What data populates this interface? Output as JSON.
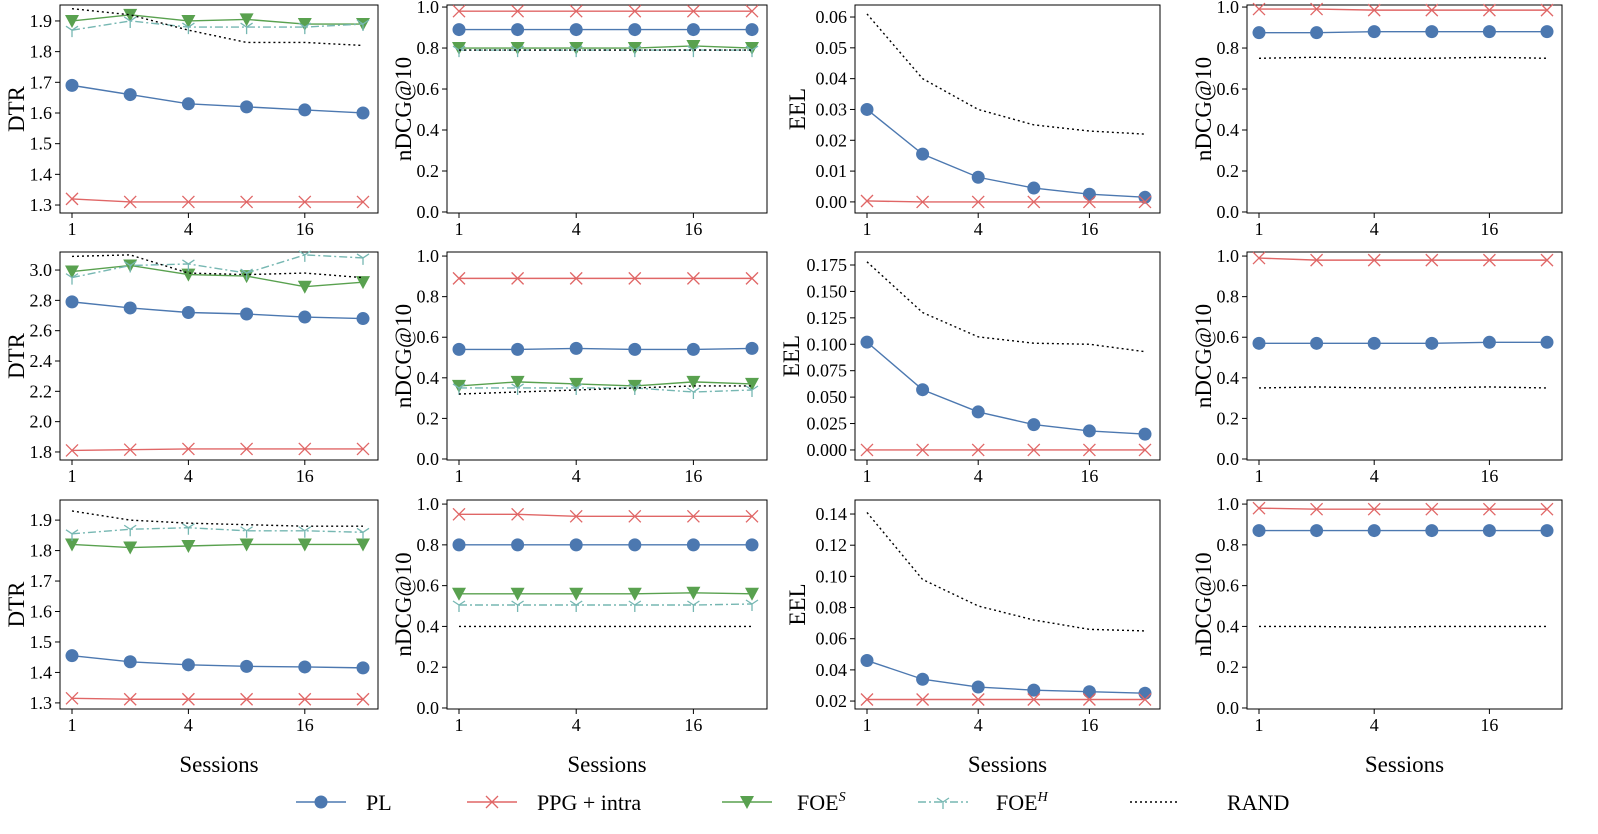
{
  "legend": [
    {
      "key": "PL",
      "label": "PL",
      "sup": "",
      "color": "#4c78b0",
      "marker": "circle",
      "dash": "solid"
    },
    {
      "key": "PPG",
      "label": "PPG + intra",
      "sup": "",
      "color": "#e06666",
      "marker": "x",
      "dash": "solid"
    },
    {
      "key": "FOES",
      "label": "FOE",
      "sup": "S",
      "color": "#59a14f",
      "marker": "triangle-down",
      "dash": "solid"
    },
    {
      "key": "FOEH",
      "label": "FOE",
      "sup": "H",
      "color": "#76b7b2",
      "marker": "tri-down",
      "dash": "dashdot"
    },
    {
      "key": "RAND",
      "label": "RAND",
      "sup": "",
      "color": "#000000",
      "marker": "none",
      "dash": "dotted"
    }
  ],
  "chart_data": [
    {
      "type": "line",
      "ylabel": "DTR",
      "xlabel": "",
      "x": [
        1,
        2,
        4,
        8,
        16,
        32
      ],
      "xticks": [
        1,
        4,
        16
      ],
      "xscale": "log2",
      "ylim": [
        1.274,
        1.952
      ],
      "yticks": [
        1.3,
        1.4,
        1.5,
        1.6,
        1.7,
        1.8,
        1.9
      ],
      "series": [
        {
          "name": "PL",
          "values": [
            1.69,
            1.66,
            1.63,
            1.62,
            1.61,
            1.6
          ]
        },
        {
          "name": "PPG",
          "values": [
            1.32,
            1.31,
            1.31,
            1.31,
            1.31,
            1.31
          ]
        },
        {
          "name": "FOES",
          "values": [
            1.9,
            1.92,
            1.9,
            1.905,
            1.89,
            1.89
          ]
        },
        {
          "name": "FOEH",
          "values": [
            1.87,
            1.9,
            1.88,
            1.88,
            1.88,
            1.89
          ]
        },
        {
          "name": "RAND",
          "values": [
            1.94,
            1.92,
            1.87,
            1.83,
            1.83,
            1.82
          ]
        }
      ]
    },
    {
      "type": "line",
      "ylabel": "nDCG@10",
      "xlabel": "",
      "x": [
        1,
        2,
        4,
        8,
        16,
        32
      ],
      "xticks": [
        1,
        4,
        16
      ],
      "xscale": "log2",
      "ylim": [
        -0.005,
        1.01
      ],
      "yticks": [
        0.0,
        0.2,
        0.4,
        0.6,
        0.8,
        1.0
      ],
      "series": [
        {
          "name": "PL",
          "values": [
            0.89,
            0.89,
            0.89,
            0.89,
            0.89,
            0.89
          ]
        },
        {
          "name": "PPG",
          "values": [
            0.98,
            0.98,
            0.98,
            0.98,
            0.98,
            0.98
          ]
        },
        {
          "name": "FOES",
          "values": [
            0.8,
            0.8,
            0.8,
            0.8,
            0.81,
            0.8
          ]
        },
        {
          "name": "FOEH",
          "values": [
            0.79,
            0.79,
            0.79,
            0.79,
            0.79,
            0.79
          ]
        },
        {
          "name": "RAND",
          "values": [
            0.79,
            0.79,
            0.79,
            0.79,
            0.79,
            0.79
          ]
        }
      ]
    },
    {
      "type": "line",
      "ylabel": "EEL",
      "xlabel": "",
      "x": [
        1,
        2,
        4,
        8,
        16,
        32
      ],
      "xticks": [
        1,
        4,
        16
      ],
      "xscale": "log2",
      "ylim": [
        -0.0036,
        0.0639
      ],
      "yticks": [
        0.0,
        0.01,
        0.02,
        0.03,
        0.04,
        0.05,
        0.06
      ],
      "ydecimals": 2,
      "series": [
        {
          "name": "PL",
          "values": [
            0.03,
            0.0155,
            0.008,
            0.0045,
            0.0025,
            0.0015
          ]
        },
        {
          "name": "PPG",
          "values": [
            0.0003,
            0,
            0,
            0,
            0,
            0
          ]
        },
        {
          "name": "RAND",
          "values": [
            0.061,
            0.04,
            0.03,
            0.025,
            0.023,
            0.022
          ]
        }
      ]
    },
    {
      "type": "line",
      "ylabel": "nDCG@10",
      "xlabel": "",
      "x": [
        1,
        2,
        4,
        8,
        16,
        32
      ],
      "xticks": [
        1,
        4,
        16
      ],
      "xscale": "log2",
      "ylim": [
        -0.005,
        1.01
      ],
      "yticks": [
        0.0,
        0.2,
        0.4,
        0.6,
        0.8,
        1.0
      ],
      "series": [
        {
          "name": "PL",
          "values": [
            0.875,
            0.875,
            0.88,
            0.88,
            0.88,
            0.88
          ]
        },
        {
          "name": "PPG",
          "values": [
            0.99,
            0.99,
            0.985,
            0.985,
            0.985,
            0.985
          ]
        },
        {
          "name": "RAND",
          "values": [
            0.75,
            0.755,
            0.75,
            0.75,
            0.755,
            0.75
          ]
        }
      ]
    },
    {
      "type": "line",
      "ylabel": "DTR",
      "xlabel": "",
      "x": [
        1,
        2,
        4,
        8,
        16,
        32
      ],
      "xticks": [
        1,
        4,
        16
      ],
      "xscale": "log2",
      "ylim": [
        1.747,
        3.119
      ],
      "yticks": [
        1.8,
        2.0,
        2.2,
        2.4,
        2.6,
        2.8,
        3.0
      ],
      "series": [
        {
          "name": "PL",
          "values": [
            2.79,
            2.75,
            2.72,
            2.71,
            2.69,
            2.68
          ]
        },
        {
          "name": "PPG",
          "values": [
            1.81,
            1.815,
            1.82,
            1.82,
            1.82,
            1.82
          ]
        },
        {
          "name": "FOES",
          "values": [
            2.99,
            3.03,
            2.97,
            2.96,
            2.89,
            2.92
          ]
        },
        {
          "name": "FOEH",
          "values": [
            2.95,
            3.03,
            3.04,
            2.98,
            3.1,
            3.08
          ]
        },
        {
          "name": "RAND",
          "values": [
            3.09,
            3.1,
            2.98,
            2.97,
            2.98,
            2.95
          ]
        }
      ]
    },
    {
      "type": "line",
      "ylabel": "nDCG@10",
      "xlabel": "",
      "x": [
        1,
        2,
        4,
        8,
        16,
        32
      ],
      "xticks": [
        1,
        4,
        16
      ],
      "xscale": "log2",
      "ylim": [
        -0.005,
        1.02
      ],
      "yticks": [
        0.0,
        0.2,
        0.4,
        0.6,
        0.8,
        1.0
      ],
      "series": [
        {
          "name": "PL",
          "values": [
            0.54,
            0.54,
            0.545,
            0.54,
            0.54,
            0.545
          ]
        },
        {
          "name": "PPG",
          "values": [
            0.89,
            0.89,
            0.89,
            0.89,
            0.89,
            0.89
          ]
        },
        {
          "name": "FOES",
          "values": [
            0.36,
            0.38,
            0.37,
            0.36,
            0.38,
            0.37
          ]
        },
        {
          "name": "FOEH",
          "values": [
            0.35,
            0.35,
            0.35,
            0.35,
            0.33,
            0.34
          ]
        },
        {
          "name": "RAND",
          "values": [
            0.32,
            0.33,
            0.34,
            0.35,
            0.36,
            0.36
          ]
        }
      ]
    },
    {
      "type": "line",
      "ylabel": "EEL",
      "xlabel": "",
      "x": [
        1,
        2,
        4,
        8,
        16,
        32
      ],
      "xticks": [
        1,
        4,
        16
      ],
      "xscale": "log2",
      "ylim": [
        -0.0095,
        0.1873
      ],
      "yticks": [
        0.0,
        0.025,
        0.05,
        0.075,
        0.1,
        0.125,
        0.15,
        0.175
      ],
      "ydecimals": 3,
      "series": [
        {
          "name": "PL",
          "values": [
            0.102,
            0.057,
            0.036,
            0.024,
            0.018,
            0.015
          ]
        },
        {
          "name": "PPG",
          "values": [
            0,
            0,
            0,
            0,
            0,
            0
          ]
        },
        {
          "name": "RAND",
          "values": [
            0.178,
            0.13,
            0.107,
            0.101,
            0.1,
            0.093
          ]
        }
      ]
    },
    {
      "type": "line",
      "ylabel": "nDCG@10",
      "xlabel": "",
      "x": [
        1,
        2,
        4,
        8,
        16,
        32
      ],
      "xticks": [
        1,
        4,
        16
      ],
      "xscale": "log2",
      "ylim": [
        -0.005,
        1.02
      ],
      "yticks": [
        0.0,
        0.2,
        0.4,
        0.6,
        0.8,
        1.0
      ],
      "series": [
        {
          "name": "PL",
          "values": [
            0.57,
            0.57,
            0.57,
            0.57,
            0.575,
            0.575
          ]
        },
        {
          "name": "PPG",
          "values": [
            0.99,
            0.98,
            0.98,
            0.98,
            0.98,
            0.98
          ]
        },
        {
          "name": "RAND",
          "values": [
            0.35,
            0.355,
            0.35,
            0.35,
            0.355,
            0.35
          ]
        }
      ]
    },
    {
      "type": "line",
      "ylabel": "DTR",
      "xlabel": "Sessions",
      "x": [
        1,
        2,
        4,
        8,
        16,
        32
      ],
      "xticks": [
        1,
        4,
        16
      ],
      "xscale": "log2",
      "ylim": [
        1.28,
        1.966
      ],
      "yticks": [
        1.3,
        1.4,
        1.5,
        1.6,
        1.7,
        1.8,
        1.9
      ],
      "series": [
        {
          "name": "PL",
          "values": [
            1.455,
            1.435,
            1.425,
            1.42,
            1.418,
            1.415
          ]
        },
        {
          "name": "PPG",
          "values": [
            1.315,
            1.312,
            1.312,
            1.312,
            1.312,
            1.312
          ]
        },
        {
          "name": "FOES",
          "values": [
            1.82,
            1.81,
            1.815,
            1.82,
            1.82,
            1.82
          ]
        },
        {
          "name": "FOEH",
          "values": [
            1.855,
            1.87,
            1.875,
            1.865,
            1.865,
            1.86
          ]
        },
        {
          "name": "RAND",
          "values": [
            1.93,
            1.9,
            1.89,
            1.885,
            1.88,
            1.88
          ]
        }
      ]
    },
    {
      "type": "line",
      "ylabel": "nDCG@10",
      "xlabel": "Sessions",
      "x": [
        1,
        2,
        4,
        8,
        16,
        32
      ],
      "xticks": [
        1,
        4,
        16
      ],
      "xscale": "log2",
      "ylim": [
        -0.005,
        1.02
      ],
      "yticks": [
        0.0,
        0.2,
        0.4,
        0.6,
        0.8,
        1.0
      ],
      "series": [
        {
          "name": "PL",
          "values": [
            0.8,
            0.8,
            0.8,
            0.8,
            0.8,
            0.8
          ]
        },
        {
          "name": "PPG",
          "values": [
            0.95,
            0.95,
            0.94,
            0.94,
            0.94,
            0.94
          ]
        },
        {
          "name": "FOES",
          "values": [
            0.56,
            0.56,
            0.56,
            0.56,
            0.565,
            0.56
          ]
        },
        {
          "name": "FOEH",
          "values": [
            0.505,
            0.505,
            0.505,
            0.505,
            0.505,
            0.51
          ]
        },
        {
          "name": "RAND",
          "values": [
            0.4,
            0.4,
            0.4,
            0.4,
            0.4,
            0.4
          ]
        }
      ]
    },
    {
      "type": "line",
      "ylabel": "EEL",
      "xlabel": "Sessions",
      "x": [
        1,
        2,
        4,
        8,
        16,
        32
      ],
      "xticks": [
        1,
        4,
        16
      ],
      "xscale": "log2",
      "ylim": [
        0.0149,
        0.149
      ],
      "yticks": [
        0.02,
        0.04,
        0.06,
        0.08,
        0.1,
        0.12,
        0.14
      ],
      "ydecimals": 2,
      "series": [
        {
          "name": "PL",
          "values": [
            0.046,
            0.034,
            0.029,
            0.027,
            0.026,
            0.025
          ]
        },
        {
          "name": "PPG",
          "values": [
            0.021,
            0.021,
            0.021,
            0.021,
            0.021,
            0.021
          ]
        },
        {
          "name": "RAND",
          "values": [
            0.141,
            0.098,
            0.081,
            0.072,
            0.066,
            0.065
          ]
        }
      ]
    },
    {
      "type": "line",
      "ylabel": "nDCG@10",
      "xlabel": "Sessions",
      "x": [
        1,
        2,
        4,
        8,
        16,
        32
      ],
      "xticks": [
        1,
        4,
        16
      ],
      "xscale": "log2",
      "ylim": [
        -0.005,
        1.02
      ],
      "yticks": [
        0.0,
        0.2,
        0.4,
        0.6,
        0.8,
        1.0
      ],
      "series": [
        {
          "name": "PL",
          "values": [
            0.87,
            0.87,
            0.87,
            0.87,
            0.87,
            0.87
          ]
        },
        {
          "name": "PPG",
          "values": [
            0.98,
            0.975,
            0.975,
            0.975,
            0.975,
            0.975
          ]
        },
        {
          "name": "RAND",
          "values": [
            0.4,
            0.4,
            0.395,
            0.4,
            0.4,
            0.4
          ]
        }
      ]
    }
  ]
}
